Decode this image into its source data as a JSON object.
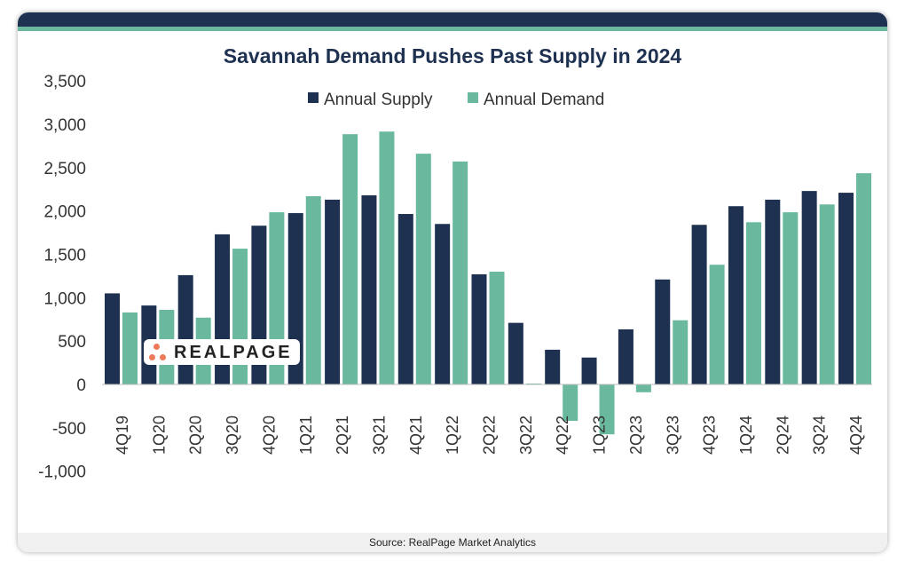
{
  "chart_data": {
    "type": "bar",
    "title": "Savannah Demand Pushes Past Supply in 2024",
    "categories": [
      "4Q19",
      "1Q20",
      "2Q20",
      "3Q20",
      "4Q20",
      "1Q21",
      "2Q21",
      "3Q21",
      "4Q21",
      "1Q22",
      "2Q22",
      "3Q22",
      "4Q22",
      "1Q23",
      "2Q23",
      "3Q23",
      "4Q23",
      "1Q24",
      "2Q24",
      "3Q24",
      "4Q24"
    ],
    "series": [
      {
        "name": "Annual Supply",
        "color": "#1e3150",
        "values": [
          1050,
          910,
          1260,
          1730,
          1830,
          1975,
          2130,
          2180,
          1965,
          1850,
          1270,
          710,
          400,
          310,
          635,
          1210,
          1840,
          2055,
          2130,
          2230,
          2210
        ]
      },
      {
        "name": "Annual Demand",
        "color": "#6ab99f",
        "values": [
          830,
          860,
          770,
          1565,
          1985,
          2170,
          2885,
          2915,
          2660,
          2570,
          1300,
          10,
          -420,
          -575,
          -90,
          740,
          1380,
          1870,
          1985,
          2075,
          2435
        ]
      }
    ],
    "ylim": [
      -1000,
      3500
    ],
    "yticks": [
      -1000,
      -500,
      0,
      500,
      1000,
      1500,
      2000,
      2500,
      3000,
      3500
    ],
    "ytick_labels": [
      "-1,000",
      "-500",
      "0",
      "500",
      "1,000",
      "1,500",
      "2,000",
      "2,500",
      "3,000",
      "3,500"
    ],
    "grid": false,
    "legend_position": "top-center",
    "source": "Source: RealPage Market Analytics",
    "logo": "REALPAGE"
  }
}
